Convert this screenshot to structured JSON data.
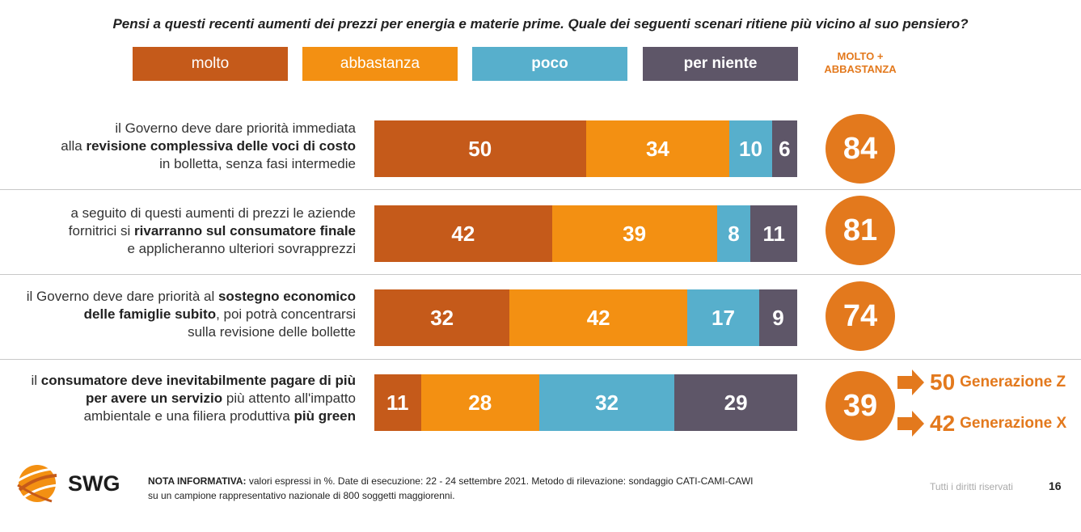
{
  "title": "Pensi a questi recenti aumenti dei prezzi per energia e materie prime. Quale dei seguenti scenari ritiene più vicino al suo pensiero?",
  "legend": [
    {
      "label": "molto",
      "color": "#C55A1A"
    },
    {
      "label": "abbastanza",
      "color": "#F39012"
    },
    {
      "label": "poco",
      "color": "#57AFCC"
    },
    {
      "label": "per niente",
      "color": "#5E5668"
    }
  ],
  "combined_header": "MOLTO + ABBASTANZA",
  "chart_data": {
    "type": "bar",
    "orientation": "horizontal",
    "stacked": true,
    "categories": [
      "il Governo deve dare priorità immediata alla revisione complessiva delle voci di costo in bolletta, senza fasi intermedie",
      "a seguito di questi aumenti di prezzi le aziende fornitrici si rivarranno sul consumatore finale e applicheranno ulteriori sovrapprezzi",
      "il Governo deve dare priorità al sostegno economico delle famiglie subito, poi potrà concentrarsi sulla revisione delle bollette",
      "il consumatore deve inevitabilmente pagare di più per avere un servizio più attento all'impatto ambientale e una filiera produttiva più green"
    ],
    "series": [
      {
        "name": "molto",
        "values": [
          50,
          42,
          32,
          11
        ]
      },
      {
        "name": "abbastanza",
        "values": [
          34,
          39,
          42,
          28
        ]
      },
      {
        "name": "poco",
        "values": [
          10,
          8,
          17,
          32
        ]
      },
      {
        "name": "per niente",
        "values": [
          6,
          11,
          9,
          29
        ]
      }
    ],
    "totals": [
      100,
      100,
      100,
      100
    ],
    "combined": {
      "name": "MOLTO + ABBASTANZA",
      "values": [
        84,
        81,
        74,
        39
      ]
    },
    "subgroups": [
      {
        "value": "50",
        "label": "Generazione Z"
      },
      {
        "value": "42",
        "label": "Generazione X"
      }
    ],
    "legend_position": "top"
  },
  "rows": [
    {
      "label_parts": [
        {
          "t": "il Governo deve dare priorità immediata",
          "b": false
        },
        {
          "br": true
        },
        {
          "t": "alla ",
          "b": false
        },
        {
          "t": "revisione complessiva delle voci di costo",
          "b": true
        },
        {
          "br": true
        },
        {
          "t": "in bolletta, senza fasi intermedie",
          "b": false
        }
      ]
    },
    {
      "label_parts": [
        {
          "t": "a seguito di questi aumenti di prezzi le aziende",
          "b": false
        },
        {
          "br": true
        },
        {
          "t": "fornitrici si ",
          "b": false
        },
        {
          "t": "rivarranno sul consumatore finale",
          "b": true
        },
        {
          "br": true
        },
        {
          "t": "e applicheranno ulteriori sovrapprezzi",
          "b": false
        }
      ]
    },
    {
      "label_parts": [
        {
          "t": "il Governo deve dare priorità al ",
          "b": false
        },
        {
          "t": "sostegno economico",
          "b": true
        },
        {
          "br": true
        },
        {
          "t": "delle famiglie subito",
          "b": true
        },
        {
          "t": ", poi potrà concentrarsi",
          "b": false
        },
        {
          "br": true
        },
        {
          "t": "sulla revisione delle bollette",
          "b": false
        }
      ]
    },
    {
      "label_parts": [
        {
          "t": "il ",
          "b": false
        },
        {
          "t": "consumatore deve inevitabilmente pagare di più",
          "b": true
        },
        {
          "br": true
        },
        {
          "t": "per avere un servizio",
          "b": true
        },
        {
          "t": " più attento all'impatto",
          "b": false
        },
        {
          "br": true
        },
        {
          "t": "ambientale e una filiera produttiva ",
          "b": false
        },
        {
          "t": "più green",
          "b": true
        }
      ]
    }
  ],
  "footer": {
    "logo": "SWG",
    "note_bold": "NOTA INFORMATIVA:",
    "note_line1": " valori espressi in %. Date di esecuzione: 22 - 24 settembre 2021. Metodo di rilevazione: sondaggio CATI-CAMI-CAWI",
    "note_line2": "su un campione rappresentativo nazionale di 800 soggetti maggiorenni.",
    "rights": "Tutti i diritti riservati",
    "page": "16"
  },
  "colors": {
    "accent": "#E3791D"
  }
}
